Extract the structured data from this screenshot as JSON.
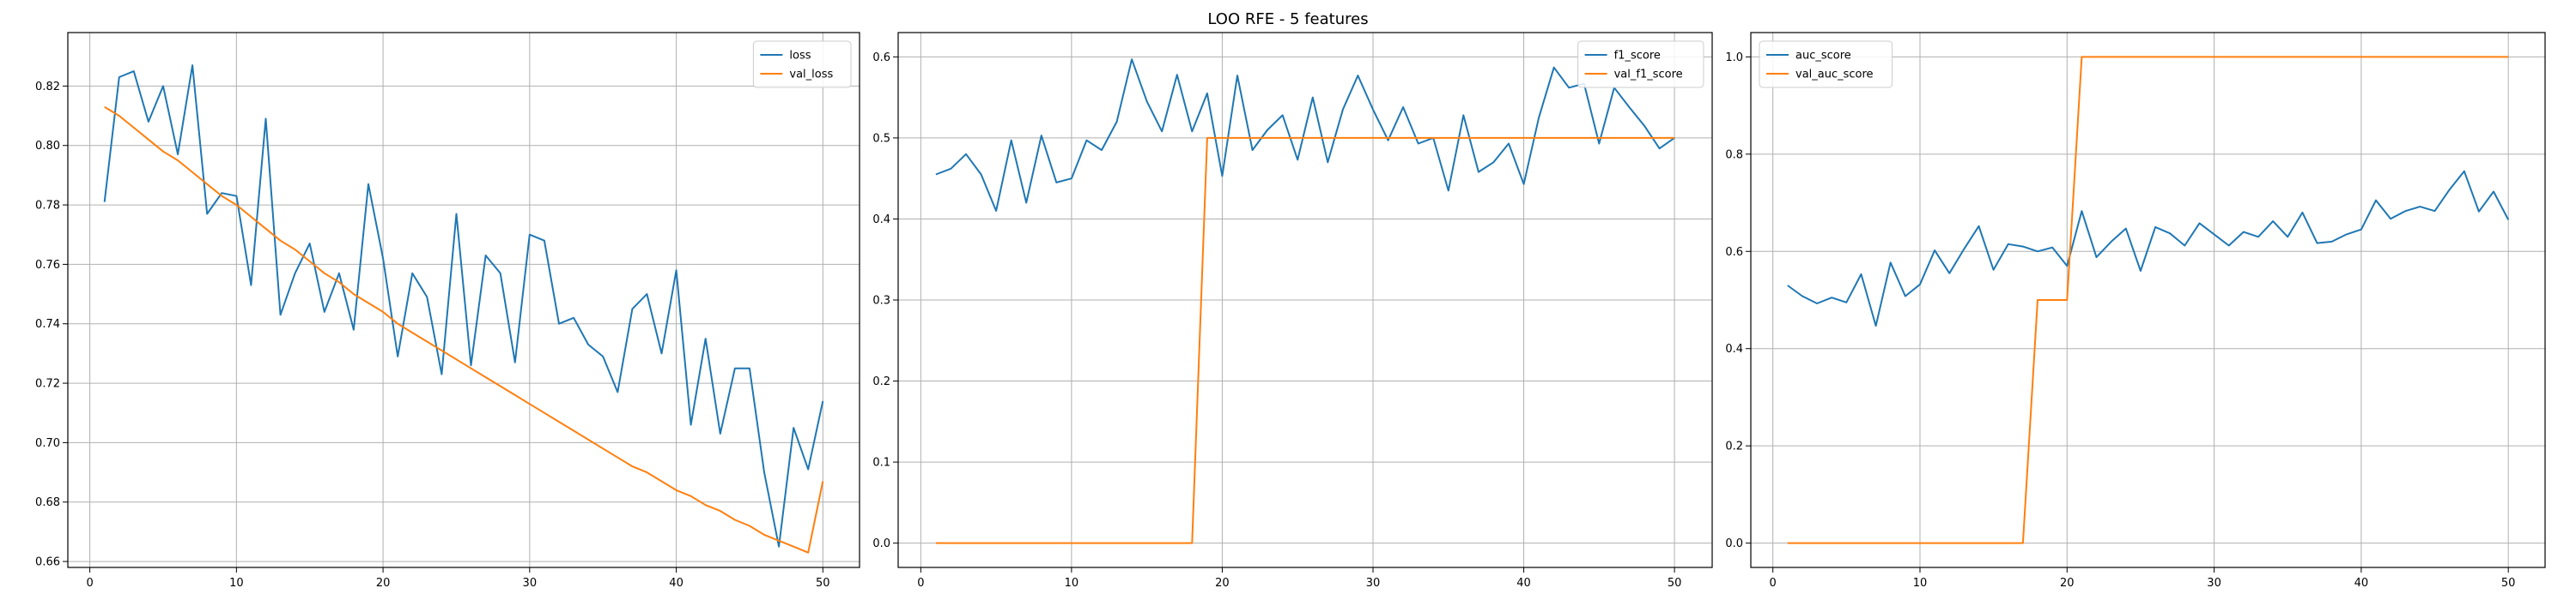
{
  "figure": {
    "title": "LOO RFE - 5 features"
  },
  "style": {
    "blue": "#1f77b4",
    "orange": "#ff7f0e",
    "grid": "#b0b0b0",
    "frame": "#000000"
  },
  "chart_data": [
    {
      "type": "line",
      "title": "",
      "xlabel": "",
      "ylabel": "",
      "xlim": [
        -1.5,
        52.5
      ],
      "ylim": [
        0.658,
        0.838
      ],
      "xticks": [
        0,
        10,
        20,
        30,
        40,
        50
      ],
      "yticks": [
        0.66,
        0.68,
        0.7,
        0.72,
        0.74,
        0.76,
        0.78,
        0.8,
        0.82
      ],
      "grid": true,
      "legend_position": "top-right",
      "x": [
        1,
        2,
        3,
        4,
        5,
        6,
        7,
        8,
        9,
        10,
        11,
        12,
        13,
        14,
        15,
        16,
        17,
        18,
        19,
        20,
        21,
        22,
        23,
        24,
        25,
        26,
        27,
        28,
        29,
        30,
        31,
        32,
        33,
        34,
        35,
        36,
        37,
        38,
        39,
        40,
        41,
        42,
        43,
        44,
        45,
        46,
        47,
        48,
        49,
        50
      ],
      "series": [
        {
          "name": "loss",
          "color": "#1f77b4",
          "values": [
            0.781,
            0.823,
            0.825,
            0.808,
            0.82,
            0.797,
            0.827,
            0.777,
            0.784,
            0.783,
            0.753,
            0.809,
            0.743,
            0.757,
            0.767,
            0.744,
            0.757,
            0.738,
            0.787,
            0.762,
            0.729,
            0.757,
            0.749,
            0.723,
            0.777,
            0.726,
            0.763,
            0.757,
            0.727,
            0.77,
            0.768,
            0.74,
            0.742,
            0.733,
            0.729,
            0.717,
            0.745,
            0.75,
            0.73,
            0.758,
            0.706,
            0.735,
            0.703,
            0.725,
            0.725,
            0.69,
            0.665,
            0.705,
            0.691,
            0.714
          ]
        },
        {
          "name": "val_loss",
          "color": "#ff7f0e",
          "values": [
            0.813,
            0.81,
            0.806,
            0.802,
            0.798,
            0.795,
            0.791,
            0.787,
            0.783,
            0.78,
            0.776,
            0.772,
            0.768,
            0.765,
            0.761,
            0.757,
            0.754,
            0.75,
            0.747,
            0.744,
            0.74,
            0.737,
            0.734,
            0.731,
            0.728,
            0.725,
            0.722,
            0.719,
            0.716,
            0.713,
            0.71,
            0.707,
            0.704,
            0.701,
            0.698,
            0.695,
            0.692,
            0.69,
            0.687,
            0.684,
            0.682,
            0.679,
            0.677,
            0.674,
            0.672,
            0.669,
            0.667,
            0.665,
            0.663,
            0.687
          ]
        }
      ]
    },
    {
      "type": "line",
      "title": "",
      "xlabel": "",
      "ylabel": "",
      "xlim": [
        -1.5,
        52.5
      ],
      "ylim": [
        -0.03,
        0.63
      ],
      "xticks": [
        0,
        10,
        20,
        30,
        40,
        50
      ],
      "yticks": [
        0.0,
        0.1,
        0.2,
        0.3,
        0.4,
        0.5,
        0.6
      ],
      "grid": true,
      "legend_position": "top-right",
      "x": [
        1,
        2,
        3,
        4,
        5,
        6,
        7,
        8,
        9,
        10,
        11,
        12,
        13,
        14,
        15,
        16,
        17,
        18,
        19,
        20,
        21,
        22,
        23,
        24,
        25,
        26,
        27,
        28,
        29,
        30,
        31,
        32,
        33,
        34,
        35,
        36,
        37,
        38,
        39,
        40,
        41,
        42,
        43,
        44,
        45,
        46,
        47,
        48,
        49,
        50
      ],
      "series": [
        {
          "name": "f1_score",
          "color": "#1f77b4",
          "values": [
            0.455,
            0.462,
            0.48,
            0.455,
            0.41,
            0.497,
            0.42,
            0.503,
            0.445,
            0.45,
            0.497,
            0.485,
            0.52,
            0.597,
            0.545,
            0.508,
            0.578,
            0.508,
            0.555,
            0.453,
            0.577,
            0.485,
            0.51,
            0.528,
            0.473,
            0.55,
            0.47,
            0.535,
            0.577,
            0.535,
            0.497,
            0.538,
            0.493,
            0.5,
            0.435,
            0.528,
            0.458,
            0.47,
            0.493,
            0.443,
            0.525,
            0.587,
            0.562,
            0.567,
            0.493,
            0.562,
            0.538,
            0.515,
            0.487,
            0.5
          ]
        },
        {
          "name": "val_f1_score",
          "color": "#ff7f0e",
          "values": [
            0,
            0,
            0,
            0,
            0,
            0,
            0,
            0,
            0,
            0,
            0,
            0,
            0,
            0,
            0,
            0,
            0,
            0,
            0.5,
            0.5,
            0.5,
            0.5,
            0.5,
            0.5,
            0.5,
            0.5,
            0.5,
            0.5,
            0.5,
            0.5,
            0.5,
            0.5,
            0.5,
            0.5,
            0.5,
            0.5,
            0.5,
            0.5,
            0.5,
            0.5,
            0.5,
            0.5,
            0.5,
            0.5,
            0.5,
            0.5,
            0.5,
            0.5,
            0.5,
            0.5
          ]
        }
      ]
    },
    {
      "type": "line",
      "title": "",
      "xlabel": "",
      "ylabel": "",
      "xlim": [
        -1.5,
        52.5
      ],
      "ylim": [
        -0.05,
        1.05
      ],
      "xticks": [
        0,
        10,
        20,
        30,
        40,
        50
      ],
      "yticks": [
        0.0,
        0.2,
        0.4,
        0.6,
        0.8,
        1.0
      ],
      "grid": true,
      "legend_position": "top-left",
      "x": [
        1,
        2,
        3,
        4,
        5,
        6,
        7,
        8,
        9,
        10,
        11,
        12,
        13,
        14,
        15,
        16,
        17,
        18,
        19,
        20,
        21,
        22,
        23,
        24,
        25,
        26,
        27,
        28,
        29,
        30,
        31,
        32,
        33,
        34,
        35,
        36,
        37,
        38,
        39,
        40,
        41,
        42,
        43,
        44,
        45,
        46,
        47,
        48,
        49,
        50
      ],
      "series": [
        {
          "name": "auc_score",
          "color": "#1f77b4",
          "values": [
            0.53,
            0.508,
            0.493,
            0.505,
            0.495,
            0.553,
            0.447,
            0.577,
            0.508,
            0.532,
            0.602,
            0.555,
            0.605,
            0.652,
            0.562,
            0.615,
            0.61,
            0.6,
            0.608,
            0.57,
            0.683,
            0.588,
            0.62,
            0.647,
            0.56,
            0.65,
            0.637,
            0.612,
            0.658,
            0.635,
            0.612,
            0.64,
            0.63,
            0.662,
            0.63,
            0.68,
            0.617,
            0.62,
            0.635,
            0.645,
            0.705,
            0.667,
            0.683,
            0.692,
            0.683,
            0.727,
            0.765,
            0.682,
            0.723,
            0.665
          ]
        },
        {
          "name": "val_auc_score",
          "color": "#ff7f0e",
          "values": [
            0,
            0,
            0,
            0,
            0,
            0,
            0,
            0,
            0,
            0,
            0,
            0,
            0,
            0,
            0,
            0,
            0,
            0.5,
            0.5,
            0.5,
            1,
            1,
            1,
            1,
            1,
            1,
            1,
            1,
            1,
            1,
            1,
            1,
            1,
            1,
            1,
            1,
            1,
            1,
            1,
            1,
            1,
            1,
            1,
            1,
            1,
            1,
            1,
            1,
            1,
            1
          ]
        }
      ]
    }
  ]
}
